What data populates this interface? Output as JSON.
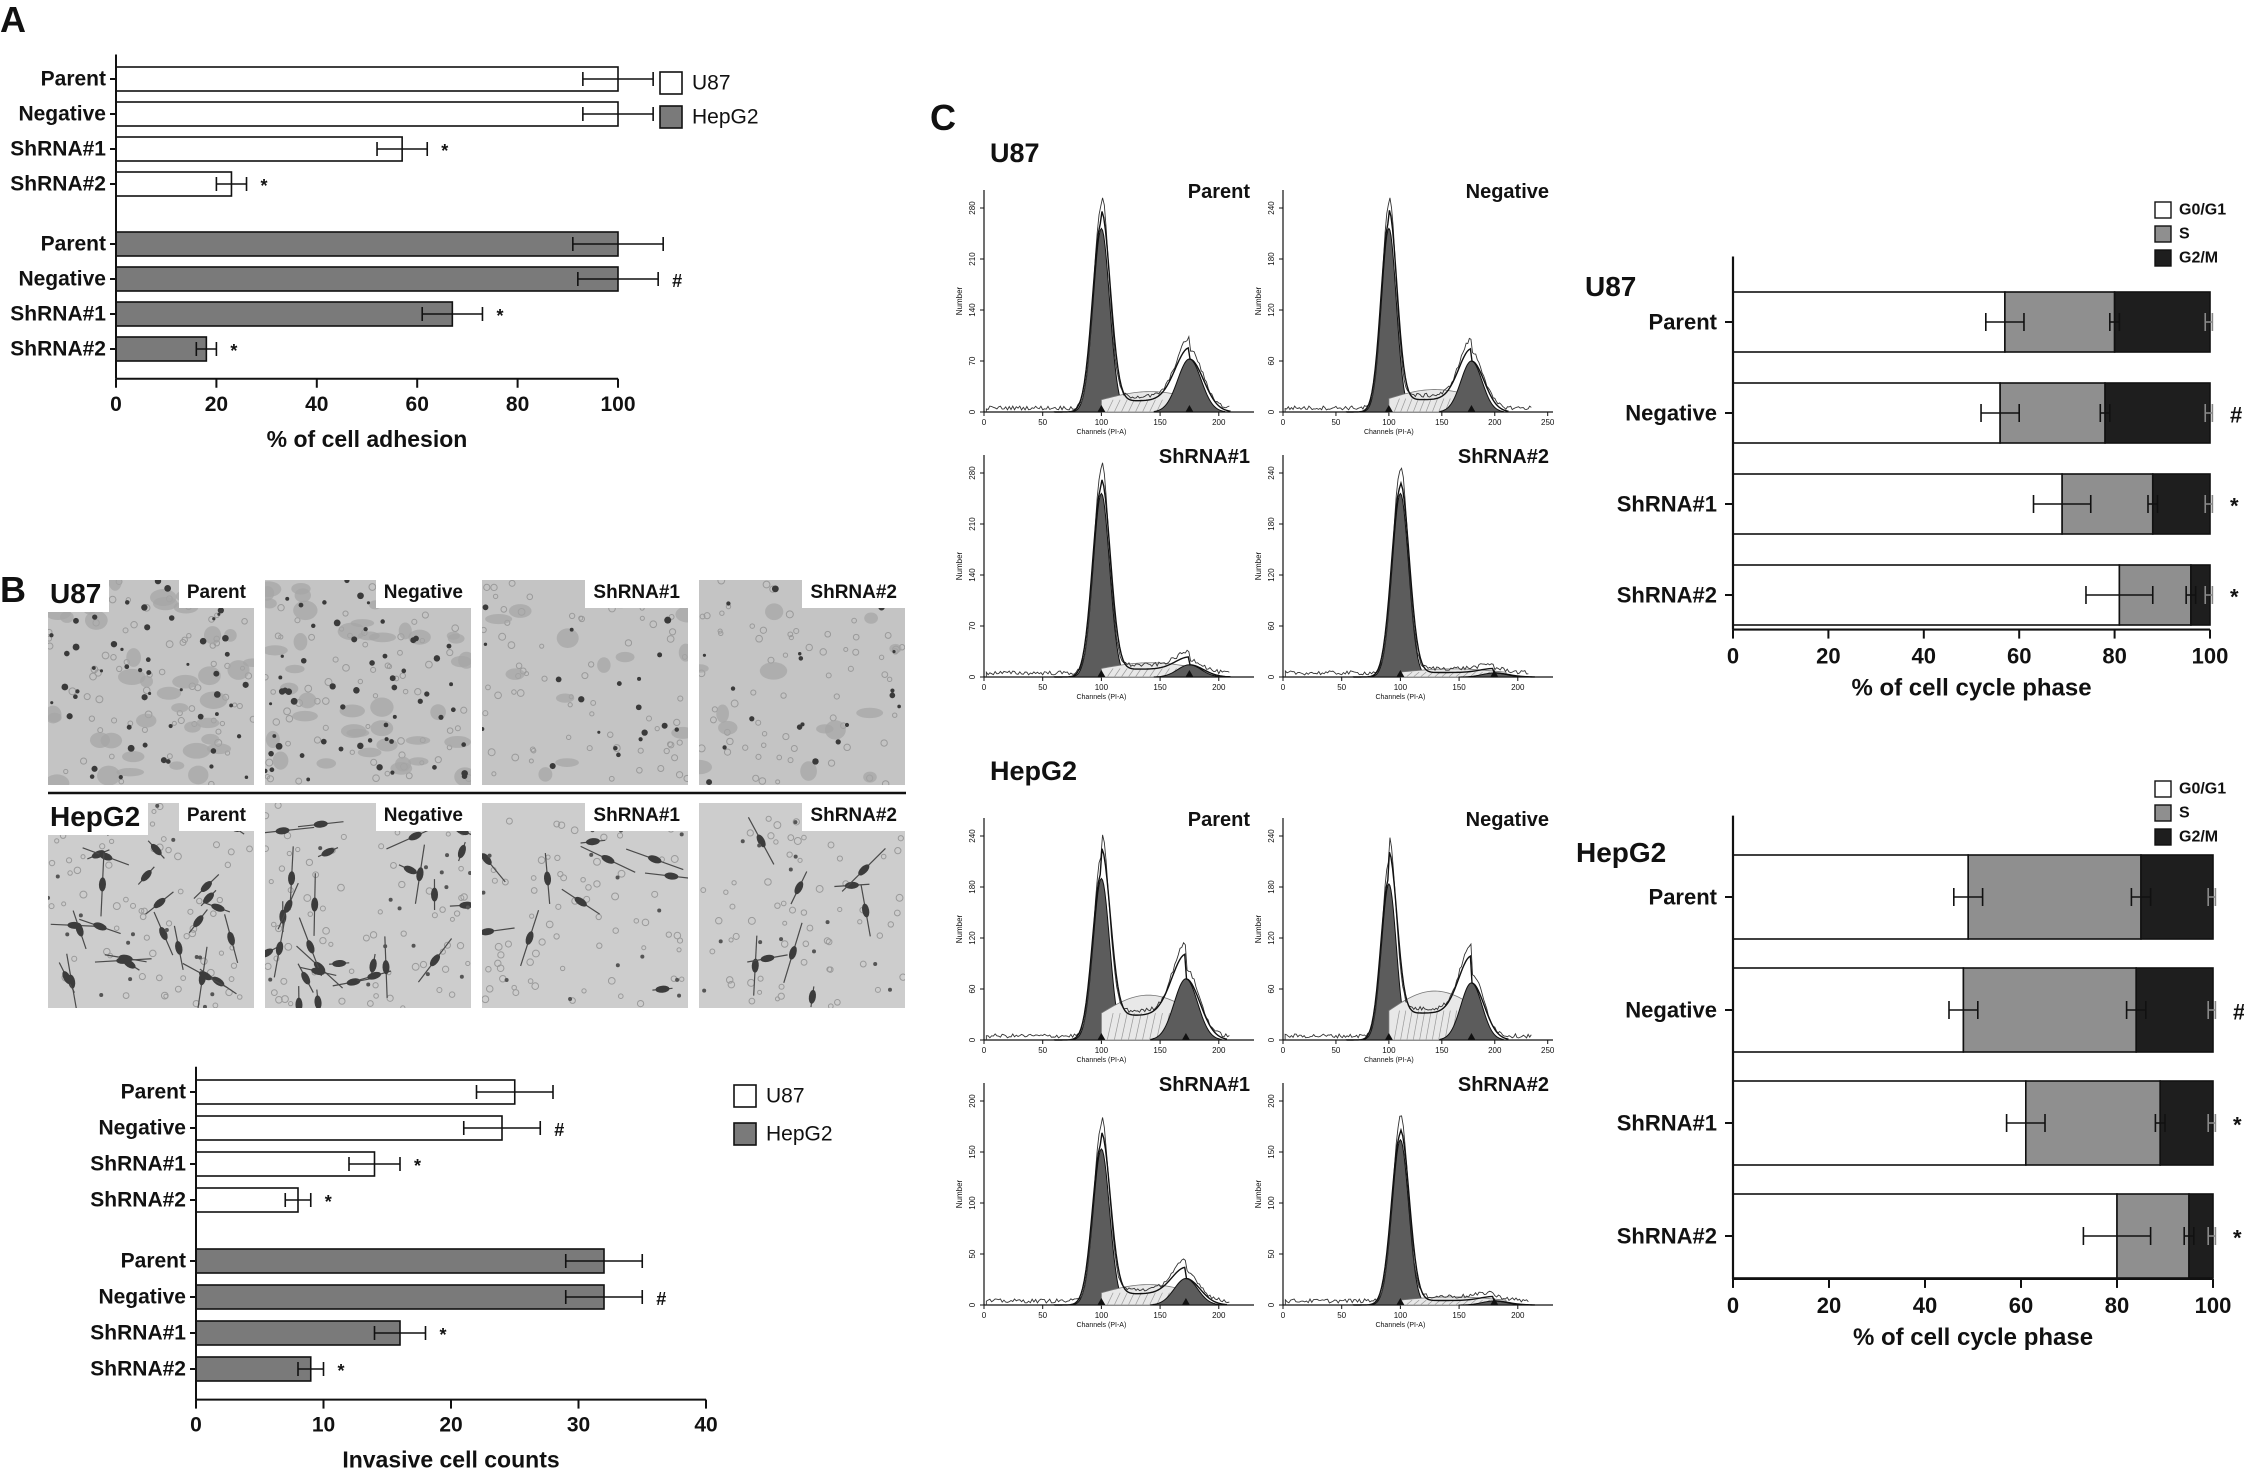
{
  "panel_labels": {
    "a": "A",
    "b": "B",
    "c": "C"
  },
  "colors": {
    "u87": "#ffffff",
    "hepg2": "#7a7a7a",
    "g0g1": "#ffffff",
    "s": "#8f8f8f",
    "g2m": "#1e1e1e",
    "ink": "#111111"
  },
  "chart_data": [
    {
      "id": "adhesion",
      "type": "bar",
      "orientation": "horizontal",
      "title": "",
      "xlabel": "% of cell adhesion",
      "ylabel": "",
      "xlim": [
        0,
        100
      ],
      "xticks": [
        0,
        20,
        40,
        60,
        80,
        100
      ],
      "legend": {
        "placement": "top-right",
        "entries": [
          "U87",
          "HepG2"
        ]
      },
      "groups": [
        {
          "series": "U87",
          "categories": [
            "Parent",
            "Negative",
            "ShRNA#1",
            "ShRNA#2"
          ],
          "values": [
            100,
            100,
            57,
            23
          ],
          "errors": [
            7,
            7,
            5,
            3
          ],
          "marks": [
            "",
            "#",
            "*",
            "*"
          ]
        },
        {
          "series": "HepG2",
          "categories": [
            "Parent",
            "Negative",
            "ShRNA#1",
            "ShRNA#2"
          ],
          "values": [
            100,
            100,
            67,
            18
          ],
          "errors": [
            9,
            8,
            6,
            2
          ],
          "marks": [
            "",
            "#",
            "*",
            "*"
          ]
        }
      ]
    },
    {
      "id": "invasion",
      "type": "bar",
      "orientation": "horizontal",
      "title": "",
      "xlabel": "Invasive cell counts",
      "ylabel": "",
      "xlim": [
        0,
        40
      ],
      "xticks": [
        0,
        10,
        20,
        30,
        40
      ],
      "legend": {
        "placement": "top-right",
        "entries": [
          "U87",
          "HepG2"
        ]
      },
      "groups": [
        {
          "series": "U87",
          "categories": [
            "Parent",
            "Negative",
            "ShRNA#1",
            "ShRNA#2"
          ],
          "values": [
            25,
            24,
            14,
            8
          ],
          "errors": [
            3,
            3,
            2,
            1
          ],
          "marks": [
            "",
            "#",
            "*",
            "*"
          ]
        },
        {
          "series": "HepG2",
          "categories": [
            "Parent",
            "Negative",
            "ShRNA#1",
            "ShRNA#2"
          ],
          "values": [
            32,
            32,
            16,
            9
          ],
          "errors": [
            3,
            3,
            2,
            1
          ],
          "marks": [
            "",
            "#",
            "*",
            "*"
          ]
        }
      ]
    },
    {
      "id": "cellcycle_u87",
      "type": "bar",
      "stacked": true,
      "orientation": "horizontal",
      "title": "U87",
      "xlabel": "% of cell cycle phase",
      "xlim": [
        0,
        100
      ],
      "xticks": [
        0,
        20,
        40,
        60,
        80,
        100
      ],
      "legend": {
        "placement": "top-right",
        "entries": [
          "G0/G1",
          "S",
          "G2/M"
        ]
      },
      "categories": [
        "Parent",
        "Negative",
        "ShRNA#1",
        "ShRNA#2"
      ],
      "series": [
        {
          "name": "G0/G1",
          "values": [
            57,
            56,
            69,
            81
          ],
          "errors": [
            4,
            4,
            6,
            7
          ]
        },
        {
          "name": "S",
          "values": [
            23,
            22,
            19,
            15
          ],
          "errors": [
            1,
            1,
            1,
            1
          ]
        },
        {
          "name": "G2/M",
          "values": [
            20,
            22,
            12,
            4
          ],
          "errors": [
            1,
            1,
            1,
            1
          ]
        }
      ],
      "marks": [
        "",
        "#",
        "*",
        "*"
      ]
    },
    {
      "id": "cellcycle_hepg2",
      "type": "bar",
      "stacked": true,
      "orientation": "horizontal",
      "title": "HepG2",
      "xlabel": "% of cell cycle phase",
      "xlim": [
        0,
        100
      ],
      "xticks": [
        0,
        20,
        40,
        60,
        80,
        100
      ],
      "legend": {
        "placement": "top-right",
        "entries": [
          "G0/G1",
          "S",
          "G2/M"
        ]
      },
      "categories": [
        "Parent",
        "Negative",
        "ShRNA#1",
        "ShRNA#2"
      ],
      "series": [
        {
          "name": "G0/G1",
          "values": [
            49,
            48,
            61,
            80
          ],
          "errors": [
            3,
            3,
            4,
            7
          ]
        },
        {
          "name": "S",
          "values": [
            36,
            36,
            28,
            15
          ],
          "errors": [
            2,
            2,
            1,
            1
          ]
        },
        {
          "name": "G2/M",
          "values": [
            15,
            16,
            11,
            5
          ],
          "errors": [
            1,
            1,
            1,
            1
          ]
        }
      ],
      "marks": [
        "",
        "#",
        "*",
        "*"
      ]
    }
  ],
  "micrographs": {
    "rows": [
      {
        "label": "U87",
        "style": "dense",
        "cells": [
          "Parent",
          "Negative",
          "ShRNA#1",
          "ShRNA#2"
        ]
      },
      {
        "label": "HepG2",
        "style": "spindle",
        "cells": [
          "Parent",
          "Negative",
          "ShRNA#1",
          "ShRNA#2"
        ]
      }
    ]
  },
  "flow_cytometry": {
    "groups": [
      {
        "label": "U87",
        "plots": [
          {
            "title": "Parent",
            "yticks": [
              "0",
              "70",
              "140",
              "210",
              "280"
            ],
            "xticks": [
              "0",
              "50",
              "100",
              "150",
              "200"
            ],
            "xlabel": "Channels (PI-A)",
            "ylabel": "Number",
            "g1": 1.0,
            "s": 0.1,
            "g2": 0.26,
            "g2pos": 175,
            "xmax": 230
          },
          {
            "title": "Negative",
            "yticks": [
              "0",
              "60",
              "120",
              "180",
              "240"
            ],
            "xticks": [
              "0",
              "50",
              "100",
              "150",
              "200",
              "250"
            ],
            "xlabel": "Channels (PI-A)",
            "ylabel": "Number",
            "g1": 1.0,
            "s": 0.11,
            "g2": 0.25,
            "g2pos": 178,
            "xmax": 255
          },
          {
            "title": "ShRNA#1",
            "yticks": [
              "0",
              "70",
              "140",
              "210",
              "280"
            ],
            "xticks": [
              "0",
              "50",
              "100",
              "150",
              "200"
            ],
            "xlabel": "Channels (PI-A)",
            "ylabel": "Number",
            "g1": 1.0,
            "s": 0.07,
            "g2": 0.06,
            "g2pos": 175,
            "xmax": 230
          },
          {
            "title": "ShRNA#2",
            "yticks": [
              "0",
              "60",
              "120",
              "180",
              "240"
            ],
            "xticks": [
              "0",
              "50",
              "100",
              "150",
              "200"
            ],
            "xlabel": "Channels (PI-A)",
            "ylabel": "Number",
            "g1": 1.0,
            "s": 0.04,
            "g2": 0.02,
            "g2pos": 180,
            "xmax": 230
          }
        ]
      },
      {
        "label": "HepG2",
        "plots": [
          {
            "title": "Parent",
            "yticks": [
              "0",
              "60",
              "120",
              "180",
              "240"
            ],
            "xticks": [
              "0",
              "50",
              "100",
              "150",
              "200"
            ],
            "xlabel": "Channels (PI-A)",
            "ylabel": "Number",
            "g1": 0.88,
            "s": 0.22,
            "g2": 0.3,
            "g2pos": 172,
            "xmax": 230
          },
          {
            "title": "Negative",
            "yticks": [
              "0",
              "60",
              "120",
              "180",
              "240"
            ],
            "xticks": [
              "0",
              "50",
              "100",
              "150",
              "200",
              "250"
            ],
            "xlabel": "Channels (PI-A)",
            "ylabel": "Number",
            "g1": 0.85,
            "s": 0.24,
            "g2": 0.28,
            "g2pos": 178,
            "xmax": 255
          },
          {
            "title": "ShRNA#1",
            "yticks": [
              "0",
              "50",
              "100",
              "150",
              "200"
            ],
            "xticks": [
              "0",
              "50",
              "100",
              "150",
              "200"
            ],
            "xlabel": "Channels (PI-A)",
            "ylabel": "Number",
            "g1": 0.85,
            "s": 0.1,
            "g2": 0.13,
            "g2pos": 172,
            "xmax": 230
          },
          {
            "title": "ShRNA#2",
            "yticks": [
              "0",
              "50",
              "100",
              "150",
              "200"
            ],
            "xticks": [
              "0",
              "50",
              "100",
              "150",
              "200"
            ],
            "xlabel": "Channels (PI-A)",
            "ylabel": "Number",
            "g1": 0.9,
            "s": 0.04,
            "g2": 0.02,
            "g2pos": 180,
            "xmax": 230
          }
        ]
      }
    ]
  }
}
